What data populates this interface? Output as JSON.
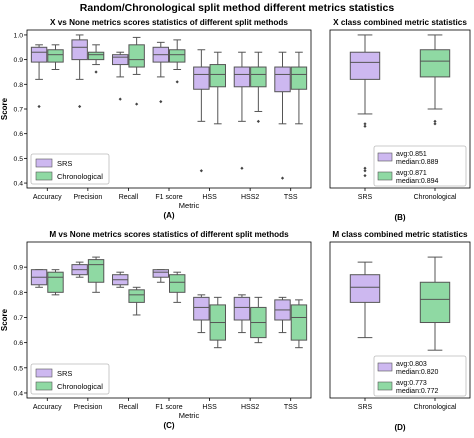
{
  "page_title": "Random/Chronological split method different metrics statistics",
  "colors": {
    "srs": "#cdb8f0",
    "chronological": "#8fd9a3",
    "line": "#555555"
  },
  "chart_data": [
    {
      "id": "A",
      "type": "box",
      "title": "X vs None metrics scores statistics of different split methods",
      "xlabel": "Metric",
      "ylabel": "Score",
      "panel_label": "(A)",
      "ylim": [
        0.38,
        1.02
      ],
      "yticks": [
        0.4,
        0.5,
        0.6,
        0.7,
        0.8,
        0.9,
        1.0
      ],
      "categories": [
        "Accuracy",
        "Precision",
        "Recall",
        "F1 score",
        "HSS",
        "HSS2",
        "TSS"
      ],
      "legend": {
        "position": "lower-left",
        "entries": [
          "SRS",
          "Chronological"
        ]
      },
      "series": [
        {
          "name": "SRS",
          "boxes": [
            {
              "whislo": 0.82,
              "q1": 0.89,
              "med": 0.93,
              "q3": 0.95,
              "whishi": 0.96,
              "fliers": [
                0.71
              ]
            },
            {
              "whislo": 0.82,
              "q1": 0.9,
              "med": 0.95,
              "q3": 0.98,
              "whishi": 1.0,
              "fliers": [
                0.71
              ]
            },
            {
              "whislo": 0.83,
              "q1": 0.88,
              "med": 0.91,
              "q3": 0.92,
              "whishi": 0.93,
              "fliers": [
                0.74
              ]
            },
            {
              "whislo": 0.83,
              "q1": 0.89,
              "med": 0.92,
              "q3": 0.95,
              "whishi": 0.97,
              "fliers": [
                0.73
              ]
            },
            {
              "whislo": 0.65,
              "q1": 0.78,
              "med": 0.84,
              "q3": 0.87,
              "whishi": 0.94,
              "fliers": [
                0.45
              ]
            },
            {
              "whislo": 0.65,
              "q1": 0.79,
              "med": 0.84,
              "q3": 0.87,
              "whishi": 0.93,
              "fliers": [
                0.46
              ]
            },
            {
              "whislo": 0.64,
              "q1": 0.77,
              "med": 0.84,
              "q3": 0.87,
              "whishi": 0.93,
              "fliers": [
                0.42
              ]
            }
          ]
        },
        {
          "name": "Chronological",
          "boxes": [
            {
              "whislo": 0.86,
              "q1": 0.89,
              "med": 0.92,
              "q3": 0.94,
              "whishi": 0.96,
              "fliers": []
            },
            {
              "whislo": 0.88,
              "q1": 0.9,
              "med": 0.92,
              "q3": 0.93,
              "whishi": 0.96,
              "fliers": [
                0.85
              ]
            },
            {
              "whislo": 0.84,
              "q1": 0.87,
              "med": 0.9,
              "q3": 0.96,
              "whishi": 0.99,
              "fliers": [
                0.72
              ]
            },
            {
              "whislo": 0.86,
              "q1": 0.89,
              "med": 0.92,
              "q3": 0.94,
              "whishi": 0.98,
              "fliers": [
                0.81
              ]
            },
            {
              "whislo": 0.64,
              "q1": 0.79,
              "med": 0.84,
              "q3": 0.88,
              "whishi": 0.93,
              "fliers": []
            },
            {
              "whislo": 0.69,
              "q1": 0.79,
              "med": 0.84,
              "q3": 0.87,
              "whishi": 0.93,
              "fliers": [
                0.65
              ]
            },
            {
              "whislo": 0.64,
              "q1": 0.78,
              "med": 0.84,
              "q3": 0.87,
              "whishi": 0.93,
              "fliers": []
            }
          ]
        }
      ]
    },
    {
      "id": "B",
      "type": "box",
      "title": "X class combined metric statistics",
      "xlabel": "",
      "ylabel": "",
      "panel_label": "(B)",
      "ylim": [
        0.38,
        1.02
      ],
      "categories": [
        "SRS",
        "Chronological"
      ],
      "single": true,
      "colors": [
        "#cdb8f0",
        "#8fd9a3"
      ],
      "boxes": [
        {
          "whislo": 0.68,
          "q1": 0.82,
          "med": 0.889,
          "q3": 0.93,
          "whishi": 1.0,
          "fliers": [
            0.64,
            0.63,
            0.46,
            0.45,
            0.43
          ]
        },
        {
          "whislo": 0.7,
          "q1": 0.83,
          "med": 0.894,
          "q3": 0.94,
          "whishi": 1.0,
          "fliers": [
            0.65,
            0.64
          ]
        }
      ],
      "stats": [
        {
          "series": "SRS",
          "avg": "avg:0.851",
          "median": "median:0.889"
        },
        {
          "series": "Chronological",
          "avg": "avg:0.871",
          "median": "median:0.894"
        }
      ]
    },
    {
      "id": "C",
      "type": "box",
      "title": "M vs None metrics scores statistics of different split methods",
      "xlabel": "Metric",
      "ylabel": "Score",
      "panel_label": "(C)",
      "ylim": [
        0.38,
        1.0
      ],
      "yticks": [
        0.4,
        0.5,
        0.6,
        0.7,
        0.8,
        0.9
      ],
      "categories": [
        "Accuracy",
        "Precision",
        "Recall",
        "F1 score",
        "HSS",
        "HSS2",
        "TSS"
      ],
      "legend": {
        "position": "lower-left",
        "entries": [
          "SRS",
          "Chronological"
        ]
      },
      "series": [
        {
          "name": "SRS",
          "boxes": [
            {
              "whislo": 0.82,
              "q1": 0.83,
              "med": 0.86,
              "q3": 0.89,
              "whishi": 0.89,
              "fliers": []
            },
            {
              "whislo": 0.86,
              "q1": 0.87,
              "med": 0.89,
              "q3": 0.91,
              "whishi": 0.92,
              "fliers": []
            },
            {
              "whislo": 0.82,
              "q1": 0.83,
              "med": 0.85,
              "q3": 0.87,
              "whishi": 0.88,
              "fliers": []
            },
            {
              "whislo": 0.84,
              "q1": 0.86,
              "med": 0.88,
              "q3": 0.89,
              "whishi": 0.89,
              "fliers": []
            },
            {
              "whislo": 0.64,
              "q1": 0.69,
              "med": 0.74,
              "q3": 0.78,
              "whishi": 0.79,
              "fliers": []
            },
            {
              "whislo": 0.64,
              "q1": 0.69,
              "med": 0.74,
              "q3": 0.78,
              "whishi": 0.79,
              "fliers": []
            },
            {
              "whislo": 0.64,
              "q1": 0.69,
              "med": 0.73,
              "q3": 0.77,
              "whishi": 0.78,
              "fliers": []
            }
          ]
        },
        {
          "name": "Chronological",
          "boxes": [
            {
              "whislo": 0.79,
              "q1": 0.8,
              "med": 0.86,
              "q3": 0.88,
              "whishi": 0.89,
              "fliers": []
            },
            {
              "whislo": 0.8,
              "q1": 0.84,
              "med": 0.91,
              "q3": 0.93,
              "whishi": 0.94,
              "fliers": []
            },
            {
              "whislo": 0.71,
              "q1": 0.76,
              "med": 0.79,
              "q3": 0.81,
              "whishi": 0.82,
              "fliers": []
            },
            {
              "whislo": 0.76,
              "q1": 0.8,
              "med": 0.84,
              "q3": 0.87,
              "whishi": 0.88,
              "fliers": []
            },
            {
              "whislo": 0.58,
              "q1": 0.61,
              "med": 0.68,
              "q3": 0.75,
              "whishi": 0.78,
              "fliers": []
            },
            {
              "whislo": 0.6,
              "q1": 0.62,
              "med": 0.68,
              "q3": 0.74,
              "whishi": 0.78,
              "fliers": []
            },
            {
              "whislo": 0.58,
              "q1": 0.61,
              "med": 0.7,
              "q3": 0.75,
              "whishi": 0.77,
              "fliers": []
            }
          ]
        }
      ]
    },
    {
      "id": "D",
      "type": "box",
      "title": "M class combined metric statistics",
      "xlabel": "",
      "ylabel": "",
      "panel_label": "(D)",
      "ylim": [
        0.38,
        1.0
      ],
      "categories": [
        "SRS",
        "Chronological"
      ],
      "single": true,
      "colors": [
        "#cdb8f0",
        "#8fd9a3"
      ],
      "boxes": [
        {
          "whislo": 0.62,
          "q1": 0.76,
          "med": 0.82,
          "q3": 0.87,
          "whishi": 0.92,
          "fliers": []
        },
        {
          "whislo": 0.57,
          "q1": 0.68,
          "med": 0.772,
          "q3": 0.84,
          "whishi": 0.94,
          "fliers": []
        }
      ],
      "stats": [
        {
          "series": "SRS",
          "avg": "avg:0.803",
          "median": "median:0.820"
        },
        {
          "series": "Chronological",
          "avg": "avg:0.773",
          "median": "median:0.772"
        }
      ]
    }
  ]
}
